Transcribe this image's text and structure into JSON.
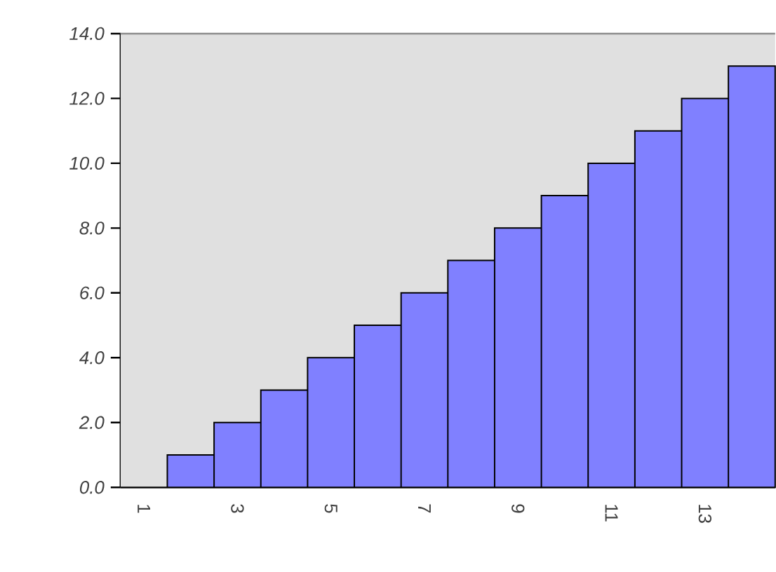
{
  "chart_data": {
    "type": "bar",
    "categories": [
      "1",
      null,
      "3",
      null,
      "5",
      null,
      "7",
      null,
      "9",
      null,
      "11",
      null,
      "13",
      null
    ],
    "values": [
      0,
      1,
      2,
      3,
      4,
      5,
      6,
      7,
      8,
      9,
      10,
      11,
      12,
      13
    ],
    "color": "#8080ff",
    "ylim": [
      0,
      14
    ],
    "yticks": [
      {
        "value": 0,
        "label": "0.0"
      },
      {
        "value": 2,
        "label": "2.0"
      },
      {
        "value": 4,
        "label": "4.0"
      },
      {
        "value": 6,
        "label": "6.0"
      },
      {
        "value": 8,
        "label": "8.0"
      },
      {
        "value": 10,
        "label": "10.0"
      },
      {
        "value": 12,
        "label": "12.0"
      },
      {
        "value": 14,
        "label": "14.0"
      }
    ],
    "marker": "none"
  }
}
